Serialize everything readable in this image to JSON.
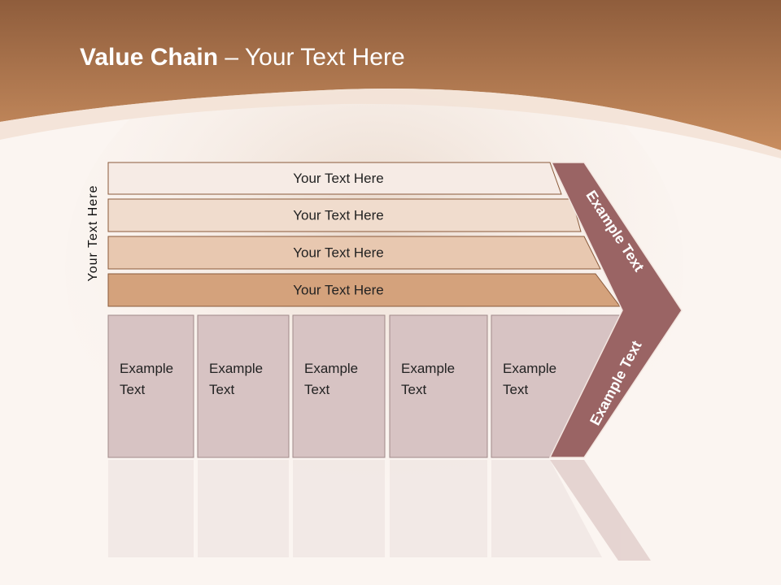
{
  "slide": {
    "title_bold": "Value Chain",
    "title_rest": " – Your Text Here",
    "side_label": "Your Text Here",
    "bars": [
      "Your Text Here",
      "Your Text Here",
      "Your Text Here",
      "Your Text Here"
    ],
    "columns": [
      {
        "line1": "Example",
        "line2": "Text"
      },
      {
        "line1": "Example",
        "line2": "Text"
      },
      {
        "line1": "Example",
        "line2": "Text"
      },
      {
        "line1": "Example",
        "line2": "Text"
      },
      {
        "line1": "Example",
        "line2": "Text"
      }
    ],
    "chevron_top": "Example Text",
    "chevron_bottom": "Example Text"
  },
  "colors": {
    "header": "#b97a4e",
    "chevron": "#9a6464",
    "bar_colors": [
      "#f6ebe5",
      "#f0dccd",
      "#e8c8b0",
      "#d4a27c"
    ],
    "column": "#d7c3c3"
  }
}
